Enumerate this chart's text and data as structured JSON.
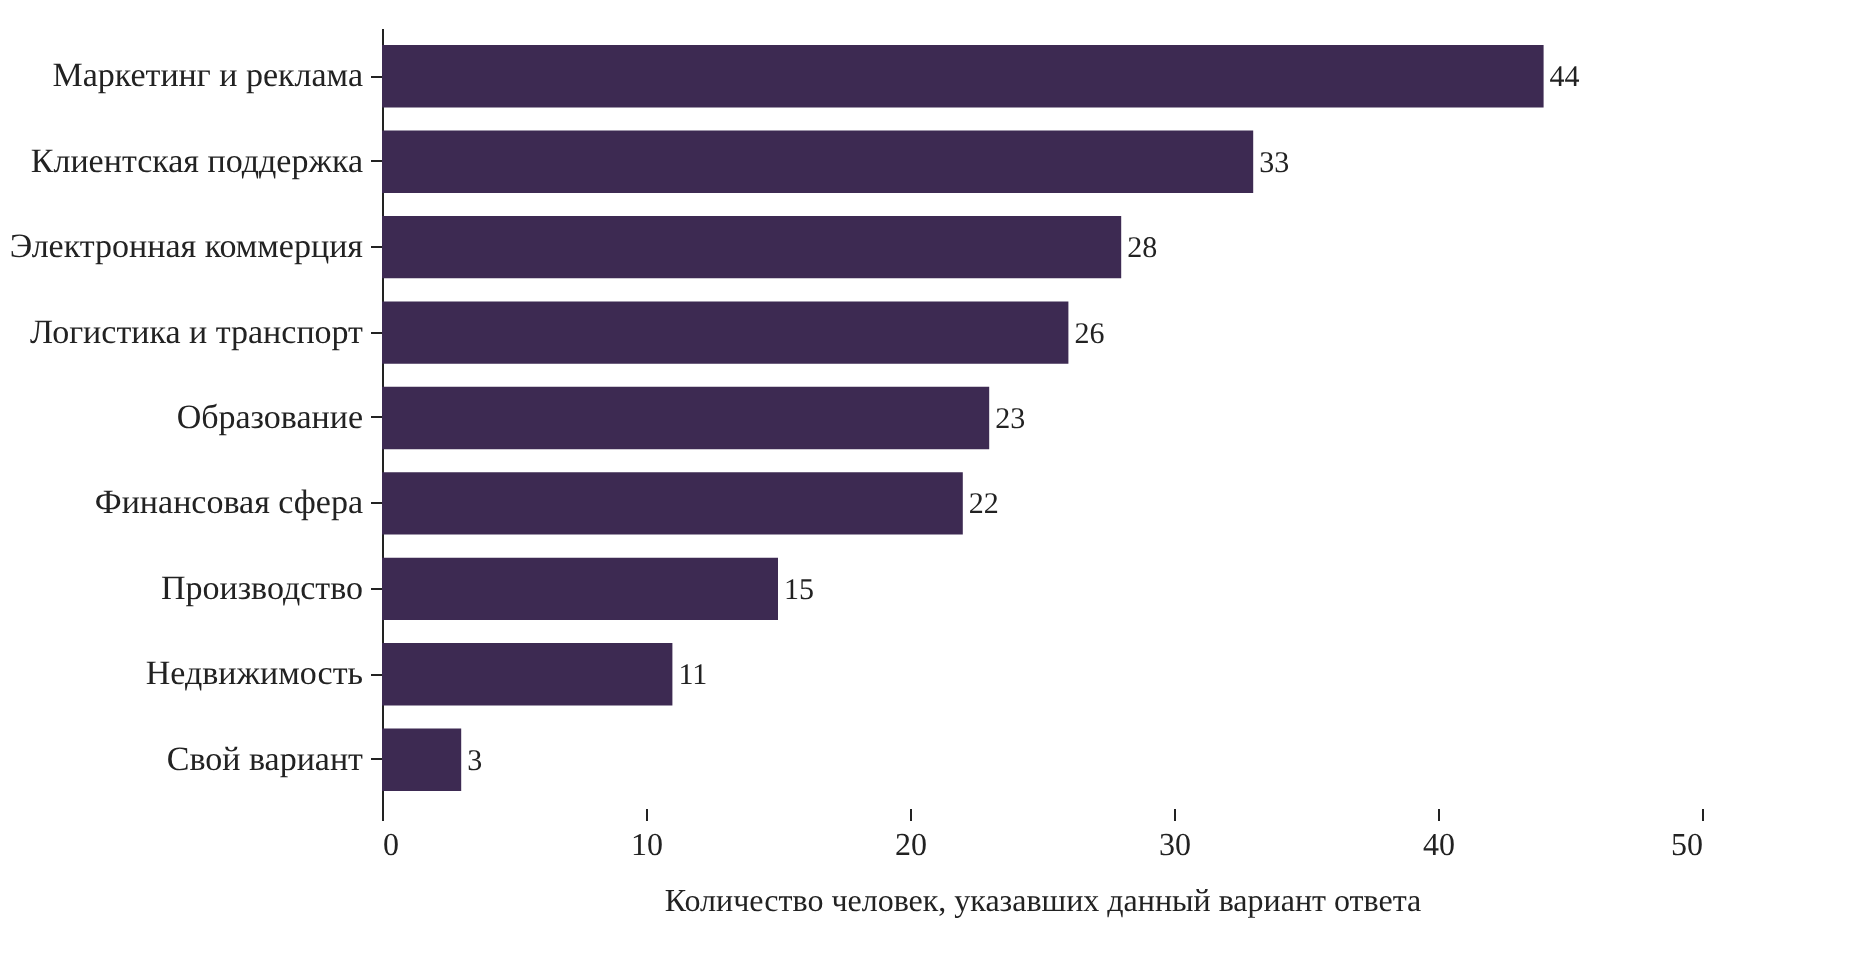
{
  "chart_data": {
    "type": "bar",
    "orientation": "horizontal",
    "xlabel": "Количество человек, указавших данный вариант ответа",
    "categories": [
      "Маркетинг и реклама",
      "Клиентская поддержка",
      "Электронная коммерция",
      "Логистика и транспорт",
      "Образование",
      "Финансовая сфера",
      "Производство",
      "Недвижимость",
      "Свой вариант"
    ],
    "values": [
      44,
      33,
      28,
      26,
      23,
      22,
      15,
      11,
      3
    ],
    "color": "#3d2a52",
    "xlim": [
      0,
      50
    ],
    "xticks": [
      0,
      10,
      20,
      30,
      40,
      50
    ],
    "data_labels": true,
    "grid": false
  }
}
